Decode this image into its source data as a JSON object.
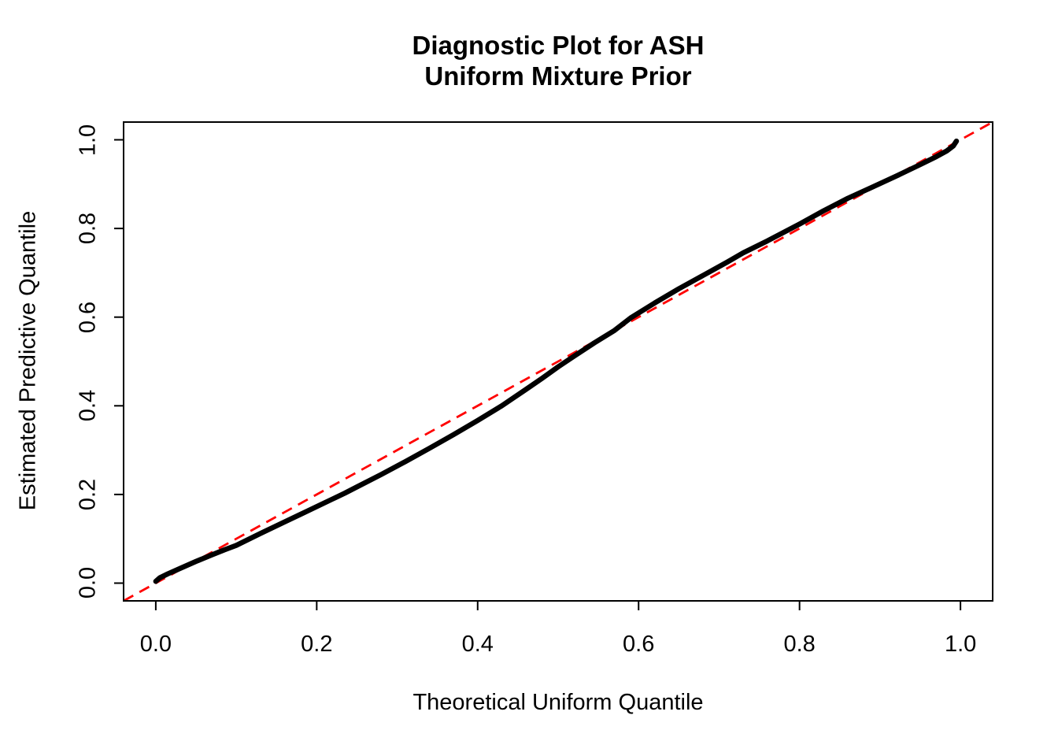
{
  "figure": {
    "background_color": "#FFFFFF",
    "text_color": "#000000"
  },
  "chart_data": {
    "type": "scatter",
    "title": "Diagnostic Plot for ASH\nUniform Mixture Prior",
    "title_line1": "Diagnostic Plot for ASH",
    "title_line2": "Uniform Mixture Prior",
    "xlabel": "Theoretical Uniform Quantile",
    "ylabel": "Estimated Predictive Quantile",
    "xlim": [
      -0.04,
      1.04
    ],
    "ylim": [
      -0.04,
      1.04
    ],
    "grid": false,
    "legend": "none",
    "frame_color": "#000000",
    "x_ticks": [
      0.0,
      0.2,
      0.4,
      0.6,
      0.8,
      1.0
    ],
    "x_tick_labels": [
      "0.0",
      "0.2",
      "0.4",
      "0.6",
      "0.8",
      "1.0"
    ],
    "y_ticks": [
      0.0,
      0.2,
      0.4,
      0.6,
      0.8,
      1.0
    ],
    "y_tick_labels": [
      "0.0",
      "0.2",
      "0.4",
      "0.6",
      "0.8",
      "1.0"
    ],
    "series": [
      {
        "name": "estimated-predictive-quantiles",
        "type": "dense-point-curve",
        "color": "#000000",
        "points": [
          [
            0.0,
            0.004
          ],
          [
            0.005,
            0.012
          ],
          [
            0.015,
            0.021
          ],
          [
            0.03,
            0.033
          ],
          [
            0.05,
            0.049
          ],
          [
            0.07,
            0.064
          ],
          [
            0.085,
            0.075
          ],
          [
            0.1,
            0.085
          ],
          [
            0.13,
            0.112
          ],
          [
            0.16,
            0.138
          ],
          [
            0.19,
            0.164
          ],
          [
            0.22,
            0.19
          ],
          [
            0.235,
            0.203
          ],
          [
            0.25,
            0.217
          ],
          [
            0.28,
            0.245
          ],
          [
            0.31,
            0.274
          ],
          [
            0.34,
            0.304
          ],
          [
            0.37,
            0.335
          ],
          [
            0.4,
            0.367
          ],
          [
            0.43,
            0.4
          ],
          [
            0.46,
            0.437
          ],
          [
            0.48,
            0.462
          ],
          [
            0.5,
            0.488
          ],
          [
            0.52,
            0.512
          ],
          [
            0.545,
            0.542
          ],
          [
            0.57,
            0.57
          ],
          [
            0.59,
            0.598
          ],
          [
            0.62,
            0.632
          ],
          [
            0.65,
            0.664
          ],
          [
            0.68,
            0.694
          ],
          [
            0.71,
            0.724
          ],
          [
            0.73,
            0.745
          ],
          [
            0.76,
            0.772
          ],
          [
            0.8,
            0.81
          ],
          [
            0.83,
            0.84
          ],
          [
            0.86,
            0.868
          ],
          [
            0.89,
            0.893
          ],
          [
            0.92,
            0.918
          ],
          [
            0.95,
            0.944
          ],
          [
            0.97,
            0.962
          ],
          [
            0.983,
            0.975
          ],
          [
            0.991,
            0.986
          ],
          [
            0.995,
            0.997
          ]
        ]
      },
      {
        "name": "identity-reference-line",
        "type": "dashed-line",
        "color": "#FF0000",
        "points": [
          [
            -0.04,
            -0.04
          ],
          [
            1.04,
            1.04
          ]
        ]
      }
    ]
  }
}
